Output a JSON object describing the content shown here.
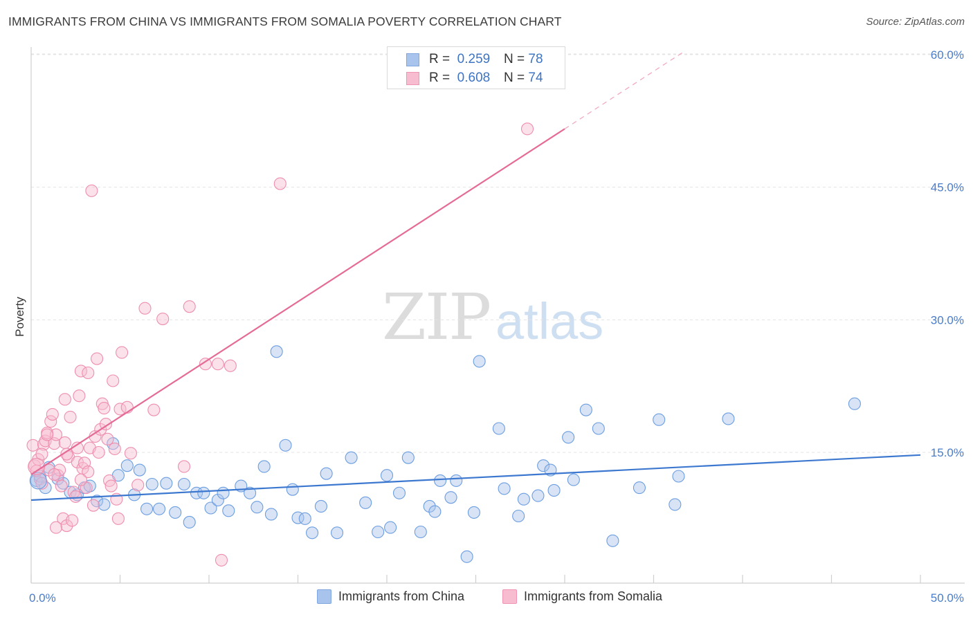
{
  "title": "IMMIGRANTS FROM CHINA VS IMMIGRANTS FROM SOMALIA POVERTY CORRELATION CHART",
  "source": "Source: ZipAtlas.com",
  "watermark": {
    "zip": "ZIP",
    "atlas": "atlas"
  },
  "legend_top": {
    "rows": [
      {
        "r_label": "R =",
        "r_value": "0.259",
        "n_label": "N =",
        "n_value": "78",
        "color": "#a9c4ec",
        "border": "#7fa6de"
      },
      {
        "r_label": "R =",
        "r_value": "0.608",
        "n_label": "N =",
        "n_value": "74",
        "color": "#f7bcd0",
        "border": "#ef94b3"
      }
    ]
  },
  "legend_bottom": [
    {
      "label": "Immigrants from China",
      "color": "#a9c4ec",
      "border": "#7fa6de"
    },
    {
      "label": "Immigrants from Somalia",
      "color": "#f7bcd0",
      "border": "#ef94b3"
    }
  ],
  "chart_data": {
    "type": "scatter",
    "xlabel": "",
    "ylabel": "Poverty",
    "xlim": [
      0,
      50
    ],
    "ylim": [
      0,
      62
    ],
    "x_tick_labels": [
      "0.0%",
      "50.0%"
    ],
    "y_ticks": [
      15,
      30,
      45,
      60
    ],
    "y_tick_labels": [
      "15.0%",
      "30.0%",
      "45.0%",
      "60.0%"
    ],
    "grid": true,
    "series": [
      {
        "name": "Immigrants from China",
        "color": "#6b9de0",
        "fill": "rgba(169,196,236,0.45)",
        "trend": {
          "x0": 0,
          "y0": 9.6,
          "x1": 50,
          "y1": 14.7,
          "color": "#3c78cf"
        },
        "points": [
          [
            0.3,
            11.8
          ],
          [
            0.5,
            12.3
          ],
          [
            0.8,
            11.0
          ],
          [
            1.0,
            13.3
          ],
          [
            1.5,
            12.0
          ],
          [
            1.8,
            11.5
          ],
          [
            2.2,
            10.5
          ],
          [
            2.6,
            10.2
          ],
          [
            3.0,
            11.0
          ],
          [
            3.3,
            11.2
          ],
          [
            3.7,
            9.5
          ],
          [
            4.1,
            9.1
          ],
          [
            4.6,
            16.0
          ],
          [
            4.9,
            12.4
          ],
          [
            5.4,
            13.5
          ],
          [
            5.8,
            10.2
          ],
          [
            6.1,
            13.0
          ],
          [
            6.5,
            8.6
          ],
          [
            6.8,
            11.4
          ],
          [
            7.2,
            8.6
          ],
          [
            7.6,
            11.5
          ],
          [
            8.1,
            8.2
          ],
          [
            8.6,
            11.4
          ],
          [
            8.9,
            7.1
          ],
          [
            9.3,
            10.4
          ],
          [
            9.7,
            10.4
          ],
          [
            10.1,
            8.7
          ],
          [
            10.5,
            9.6
          ],
          [
            10.8,
            10.4
          ],
          [
            11.1,
            8.4
          ],
          [
            11.8,
            11.2
          ],
          [
            12.3,
            10.4
          ],
          [
            12.7,
            8.8
          ],
          [
            13.1,
            13.4
          ],
          [
            13.5,
            8.0
          ],
          [
            13.8,
            26.4
          ],
          [
            14.3,
            15.8
          ],
          [
            14.7,
            10.8
          ],
          [
            15.0,
            7.6
          ],
          [
            15.4,
            7.5
          ],
          [
            15.8,
            5.9
          ],
          [
            16.3,
            8.9
          ],
          [
            16.6,
            12.6
          ],
          [
            17.2,
            5.9
          ],
          [
            18.0,
            14.4
          ],
          [
            18.8,
            9.3
          ],
          [
            19.5,
            6.0
          ],
          [
            20.0,
            12.4
          ],
          [
            20.2,
            6.5
          ],
          [
            20.7,
            10.4
          ],
          [
            21.2,
            14.4
          ],
          [
            21.9,
            6.0
          ],
          [
            22.4,
            8.9
          ],
          [
            22.7,
            8.3
          ],
          [
            23.0,
            11.8
          ],
          [
            23.6,
            9.9
          ],
          [
            23.9,
            11.8
          ],
          [
            24.5,
            3.2
          ],
          [
            24.9,
            8.2
          ],
          [
            25.2,
            25.3
          ],
          [
            26.3,
            17.7
          ],
          [
            26.6,
            10.9
          ],
          [
            27.4,
            7.8
          ],
          [
            27.7,
            9.7
          ],
          [
            28.5,
            10.1
          ],
          [
            28.8,
            13.5
          ],
          [
            29.2,
            13.0
          ],
          [
            29.4,
            10.7
          ],
          [
            30.2,
            16.7
          ],
          [
            30.5,
            11.9
          ],
          [
            31.2,
            19.8
          ],
          [
            31.9,
            17.7
          ],
          [
            32.7,
            5.0
          ],
          [
            34.2,
            11.0
          ],
          [
            35.3,
            18.7
          ],
          [
            36.2,
            9.1
          ],
          [
            36.4,
            12.3
          ],
          [
            39.2,
            18.8
          ],
          [
            46.3,
            20.5
          ]
        ]
      },
      {
        "name": "Immigrants from Somalia",
        "color": "#ee8eaf",
        "fill": "rgba(247,188,208,0.45)",
        "trend": {
          "x0": 0,
          "y0": 12.5,
          "x1": 30.0,
          "y1": 51.6,
          "color": "#e56b97"
        },
        "trend_dashed": {
          "x0": 30.0,
          "y0": 51.6,
          "x1": 36.6,
          "y1": 60.2
        },
        "points": [
          [
            0.1,
            15.8
          ],
          [
            0.2,
            13.5
          ],
          [
            0.4,
            14.2
          ],
          [
            0.5,
            12.0
          ],
          [
            0.6,
            11.5
          ],
          [
            0.7,
            15.9
          ],
          [
            0.8,
            16.3
          ],
          [
            0.9,
            17.2
          ],
          [
            1.0,
            13.0
          ],
          [
            1.1,
            18.5
          ],
          [
            1.2,
            19.3
          ],
          [
            1.3,
            16.0
          ],
          [
            1.4,
            17.0
          ],
          [
            1.5,
            12.4
          ],
          [
            1.6,
            13.0
          ],
          [
            1.7,
            11.2
          ],
          [
            1.8,
            7.5
          ],
          [
            1.9,
            21.0
          ],
          [
            2.0,
            6.7
          ],
          [
            2.1,
            14.5
          ],
          [
            2.2,
            19.0
          ],
          [
            2.3,
            7.3
          ],
          [
            2.4,
            10.5
          ],
          [
            2.5,
            10.0
          ],
          [
            2.6,
            13.9
          ],
          [
            2.7,
            21.4
          ],
          [
            2.8,
            24.2
          ],
          [
            2.9,
            13.2
          ],
          [
            3.0,
            13.8
          ],
          [
            3.1,
            11.0
          ],
          [
            3.2,
            24.0
          ],
          [
            3.3,
            15.5
          ],
          [
            3.4,
            44.6
          ],
          [
            3.5,
            9.0
          ],
          [
            3.6,
            16.8
          ],
          [
            3.7,
            25.6
          ],
          [
            3.8,
            15.0
          ],
          [
            3.9,
            17.6
          ],
          [
            4.0,
            20.5
          ],
          [
            4.1,
            20.0
          ],
          [
            4.2,
            18.2
          ],
          [
            4.3,
            16.5
          ],
          [
            4.4,
            11.8
          ],
          [
            4.5,
            11.2
          ],
          [
            4.6,
            23.1
          ],
          [
            4.7,
            15.4
          ],
          [
            4.8,
            9.7
          ],
          [
            4.9,
            7.5
          ],
          [
            5.0,
            19.9
          ],
          [
            5.1,
            26.3
          ],
          [
            5.4,
            20.1
          ],
          [
            5.6,
            14.9
          ],
          [
            6.0,
            11.3
          ],
          [
            6.4,
            31.3
          ],
          [
            6.9,
            19.8
          ],
          [
            7.4,
            30.1
          ],
          [
            8.6,
            13.4
          ],
          [
            8.9,
            31.5
          ],
          [
            9.8,
            25.0
          ],
          [
            10.5,
            25.0
          ],
          [
            11.2,
            24.8
          ],
          [
            10.7,
            2.8
          ],
          [
            14.0,
            45.4
          ],
          [
            27.9,
            51.6
          ],
          [
            1.4,
            6.5
          ],
          [
            0.9,
            17.0
          ],
          [
            1.3,
            12.5
          ],
          [
            2.0,
            14.8
          ],
          [
            2.6,
            15.5
          ],
          [
            3.2,
            12.8
          ],
          [
            0.3,
            12.9
          ],
          [
            0.6,
            14.8
          ],
          [
            1.9,
            16.1
          ],
          [
            2.8,
            11.9
          ]
        ]
      }
    ]
  }
}
